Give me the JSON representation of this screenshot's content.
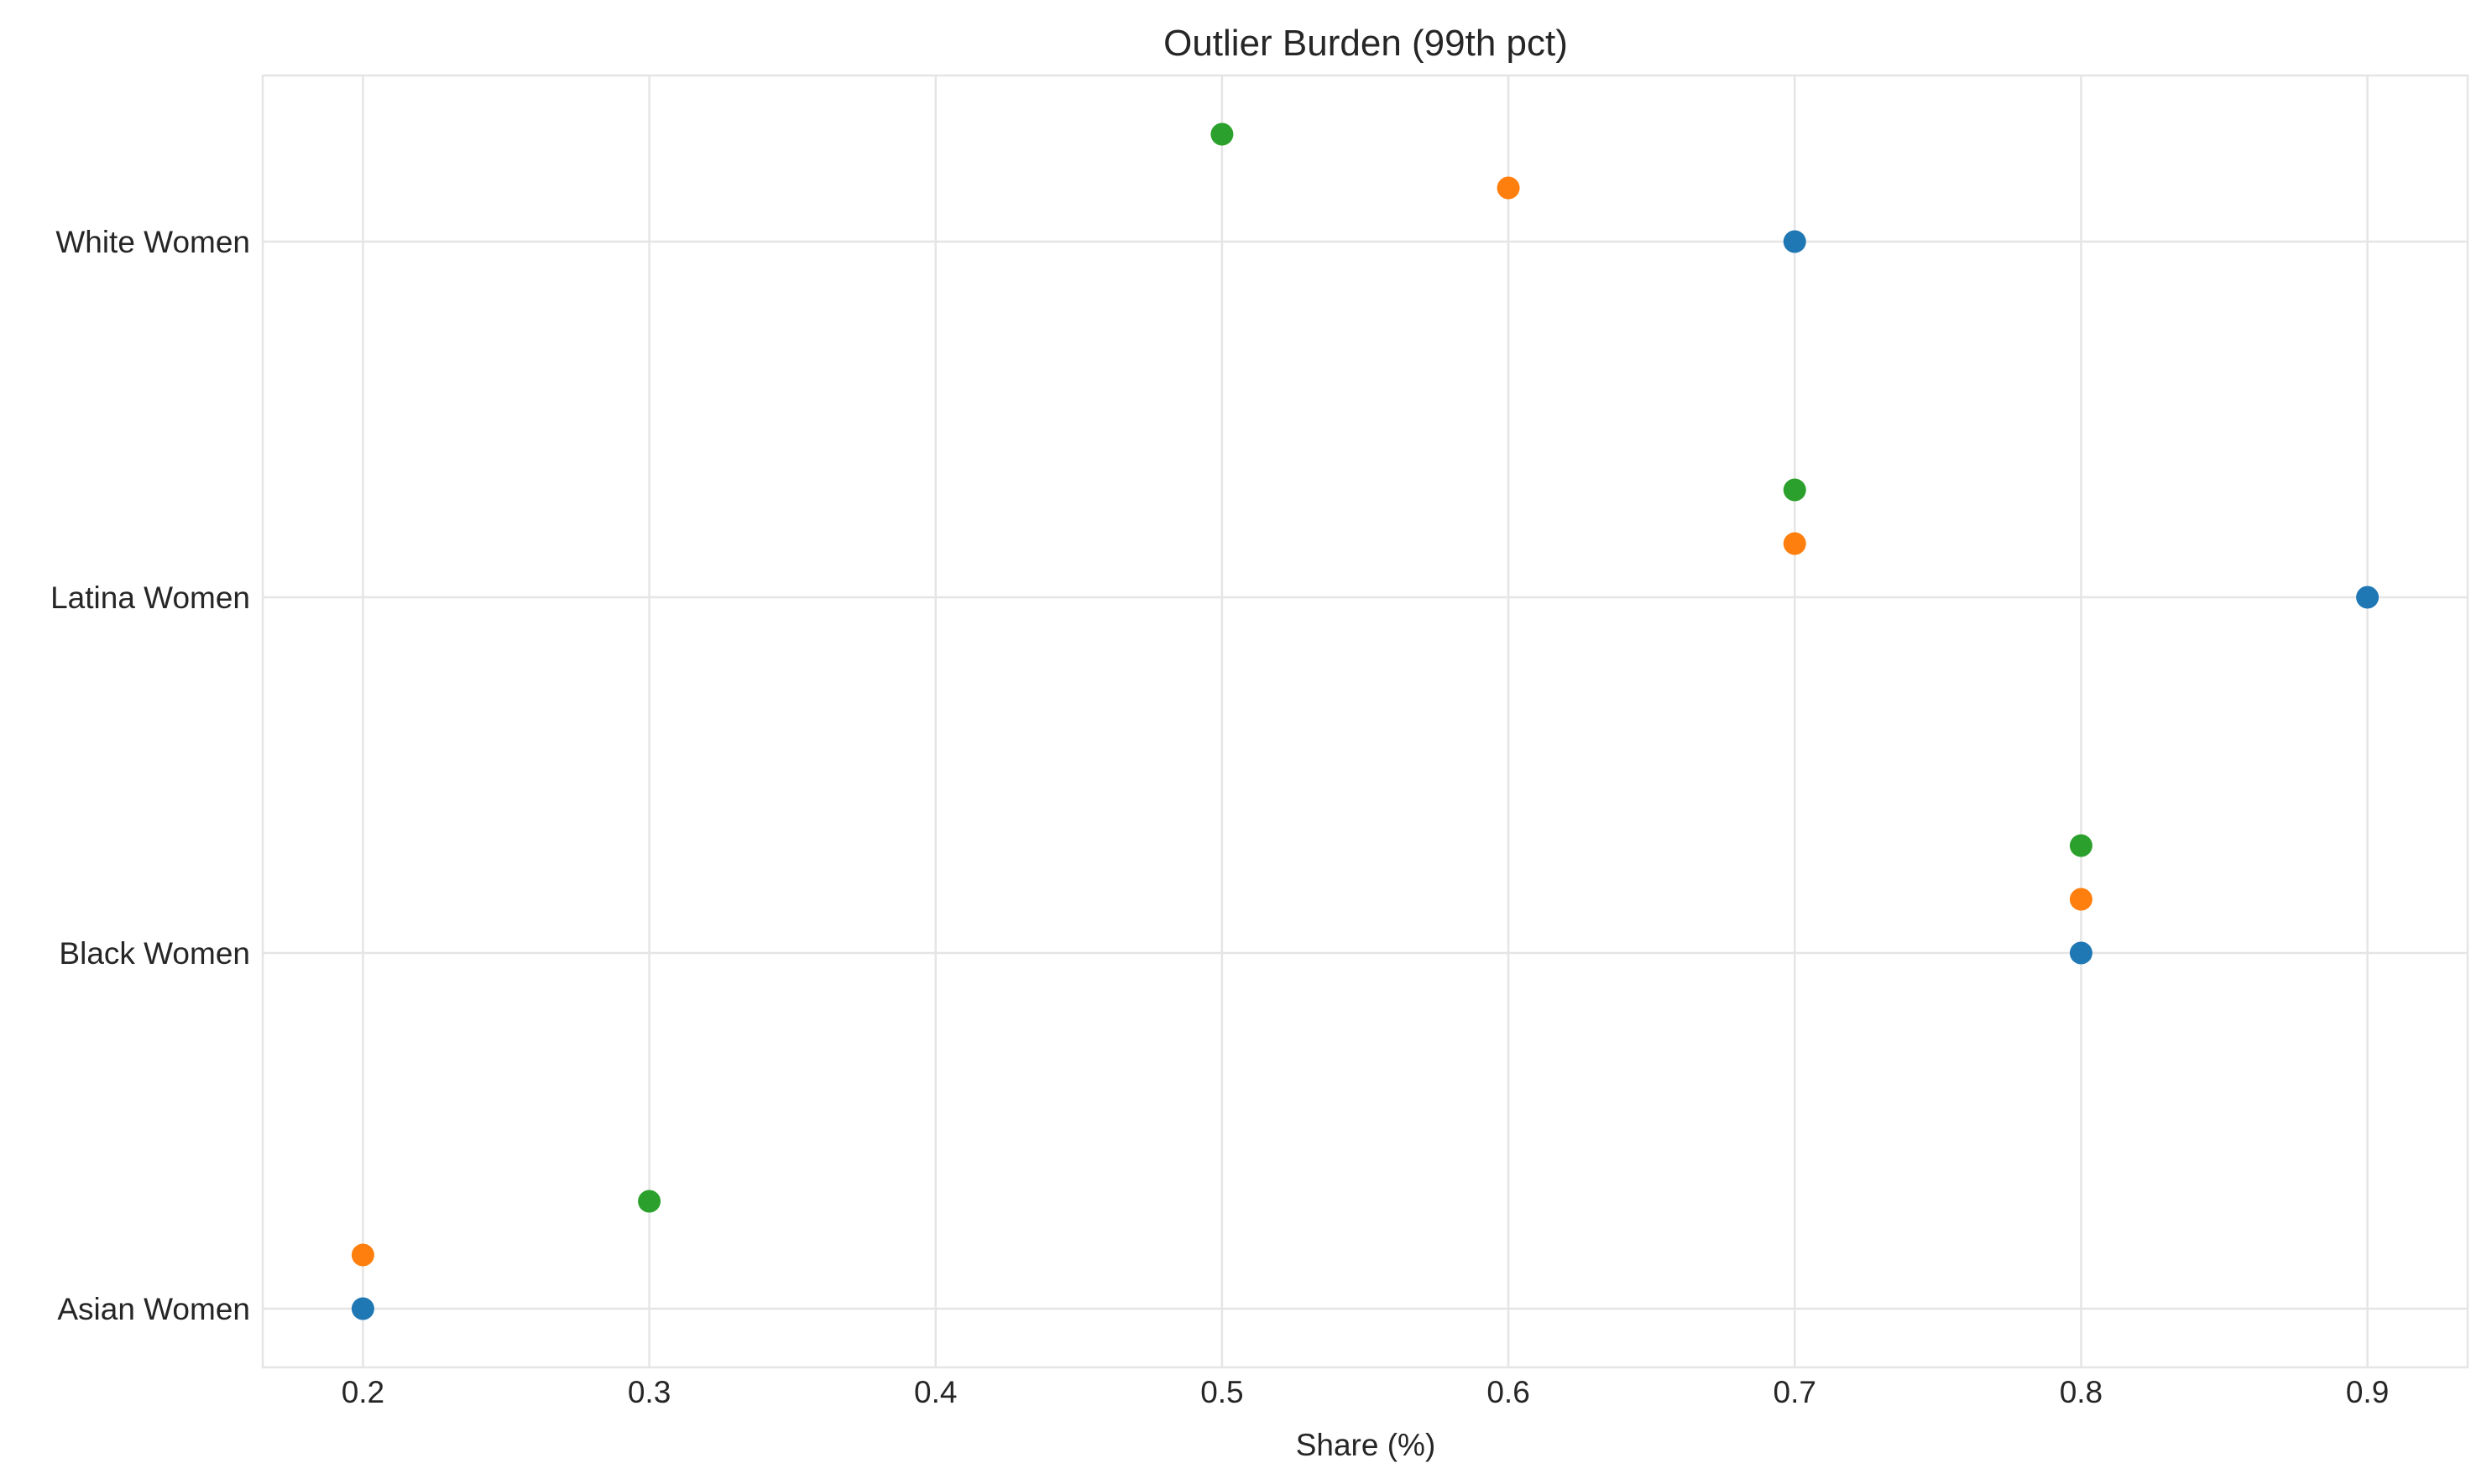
{
  "chart_data": {
    "type": "scatter",
    "title": "Outlier Burden (99th pct)",
    "xlabel": "Share (%)",
    "ylabel": "",
    "xlim": [
      0.165,
      0.935
    ],
    "x_ticks": [
      "0.2",
      "0.3",
      "0.4",
      "0.5",
      "0.6",
      "0.7",
      "0.8",
      "0.9"
    ],
    "x_tick_values": [
      0.2,
      0.3,
      0.4,
      0.5,
      0.6,
      0.7,
      0.8,
      0.9
    ],
    "categories": [
      "Asian Women",
      "Black Women",
      "Latina Women",
      "White Women"
    ],
    "grid": true,
    "legend": "none",
    "series": [
      {
        "color": "#1f77b4",
        "values": [
          0.2,
          0.8,
          0.9,
          0.7
        ]
      },
      {
        "color": "#ff7f0e",
        "values": [
          0.2,
          0.8,
          0.7,
          0.6
        ]
      },
      {
        "color": "#2ca02c",
        "values": [
          0.3,
          0.8,
          0.7,
          0.5
        ]
      }
    ]
  }
}
